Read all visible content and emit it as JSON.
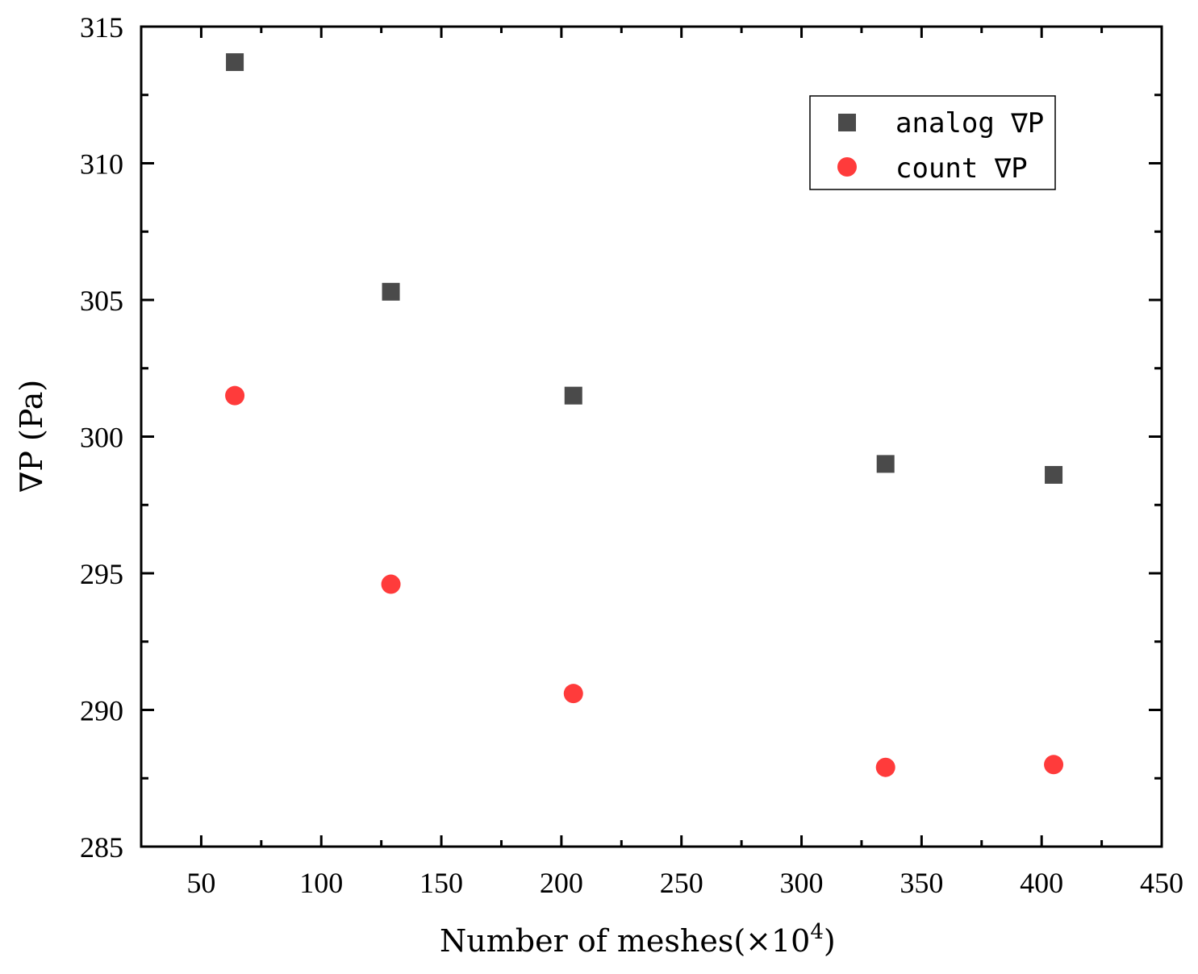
{
  "chart_data": {
    "type": "scatter",
    "title": "",
    "xlabel": "Number of meshes(×10",
    "xlabel_sup": "4",
    "xlabel_close": ")",
    "ylabel": "∇P (Pa)",
    "xlim": [
      25,
      450
    ],
    "ylim": [
      285,
      315
    ],
    "xticks": [
      50,
      100,
      150,
      200,
      250,
      300,
      350,
      400,
      450
    ],
    "yticks": [
      285,
      290,
      295,
      300,
      305,
      310,
      315
    ],
    "legend_position": "top-right",
    "series": [
      {
        "name": "analog ∇P",
        "marker": "square",
        "color": "#4a4a4a",
        "x": [
          64,
          129,
          205,
          335,
          405
        ],
        "y": [
          313.7,
          305.3,
          301.5,
          299.0,
          298.6
        ]
      },
      {
        "name": "count  ∇P",
        "marker": "circle",
        "color": "#ff3b3b",
        "x": [
          64,
          129,
          205,
          335,
          405
        ],
        "y": [
          301.5,
          294.6,
          290.6,
          287.9,
          288.0
        ]
      }
    ]
  }
}
